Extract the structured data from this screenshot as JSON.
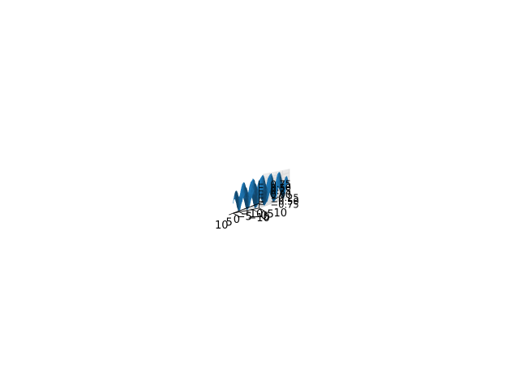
{
  "chart_data": {
    "type": "surface3d",
    "function": "z = sin(x) * sin(y)",
    "x": {
      "min": -10,
      "max": 10,
      "ticks": [
        -10,
        -5,
        0,
        5,
        10
      ],
      "tick_labels": [
        "−10",
        "−5",
        "0",
        "5",
        "10"
      ]
    },
    "y": {
      "min": -10,
      "max": 10,
      "ticks": [
        -10,
        -5,
        0,
        5,
        10
      ],
      "tick_labels": [
        "−10",
        "−5",
        "0",
        "5",
        "10"
      ]
    },
    "z": {
      "min": -1.0,
      "max": 1.0,
      "ticks": [
        -0.75,
        -0.5,
        -0.25,
        0.0,
        0.25,
        0.5,
        0.75
      ],
      "tick_labels": [
        "−0.75",
        "−0.50",
        "−0.25",
        "0.00",
        "0.25",
        "0.50",
        "0.75"
      ]
    },
    "grid_resolution": 41,
    "title": "",
    "xlabel": "",
    "ylabel": "",
    "zlabel": "",
    "grid": true,
    "colors": {
      "surface": "#1f77b4",
      "pane": "#f2f2f2",
      "grid": "#d9d9d9",
      "axis": "#000000"
    }
  }
}
